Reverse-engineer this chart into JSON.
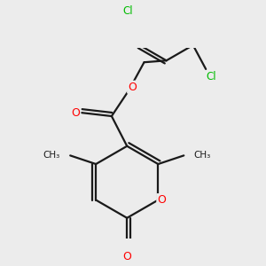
{
  "bg_color": "#ececec",
  "bond_color": "#1a1a1a",
  "bond_width": 1.6,
  "atom_colors": {
    "O": "#ff0000",
    "Cl": "#00bb00",
    "C": "#1a1a1a"
  },
  "font_size_atom": 8.5,
  "fig_size": [
    3.0,
    3.0
  ],
  "dpi": 100
}
